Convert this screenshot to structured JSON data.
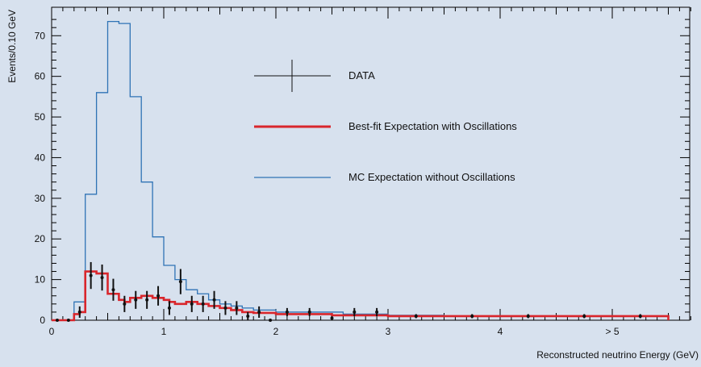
{
  "chart_data": {
    "type": "histogram",
    "xlabel": "Reconstructed neutrino Energy (GeV)",
    "ylabel": "Events/0.10 GeV",
    "xlim": [
      0,
      5.8
    ],
    "ylim": [
      0,
      77
    ],
    "grid": false,
    "legend_position": "top-center",
    "x_ticks": [
      {
        "value": 0,
        "label": "0"
      },
      {
        "value": 1,
        "label": "1"
      },
      {
        "value": 2,
        "label": "2"
      },
      {
        "value": 3,
        "label": "3"
      },
      {
        "value": 4,
        "label": "4"
      },
      {
        "value": 5,
        "label": "> 5"
      }
    ],
    "y_ticks": [
      0,
      10,
      20,
      30,
      40,
      50,
      60,
      70
    ],
    "legend": {
      "data_label": "DATA",
      "best_fit_label": "Best-fit Expectation with Oscillations",
      "mc_label": "MC Expectation without Oscillations"
    },
    "colors": {
      "data": "#111111",
      "best_fit": "#d9262c",
      "mc": "#2f73b5",
      "background": "#d7e1ee"
    },
    "mc_no_osc": {
      "name": "MC Expectation without Oscillations",
      "edges": [
        0,
        0.2,
        0.3,
        0.4,
        0.5,
        0.6,
        0.7,
        0.8,
        0.9,
        1.0,
        1.1,
        1.2,
        1.3,
        1.4,
        1.5,
        1.6,
        1.7,
        1.8,
        1.9,
        2.0,
        2.2,
        2.4,
        2.6,
        2.8,
        3.0,
        3.5,
        5.5
      ],
      "values": [
        0,
        4.5,
        31,
        56,
        73.5,
        73,
        55,
        34,
        20.5,
        13.5,
        10,
        7.5,
        6.5,
        5,
        4,
        3.5,
        3,
        2.5,
        2.5,
        2,
        2,
        2,
        1.5,
        1.5,
        1.2,
        1
      ]
    },
    "best_fit_osc": {
      "name": "Best-fit Expectation with Oscillations",
      "edges": [
        0,
        0.2,
        0.25,
        0.3,
        0.4,
        0.5,
        0.6,
        0.65,
        0.7,
        0.8,
        0.9,
        1.0,
        1.05,
        1.1,
        1.2,
        1.3,
        1.4,
        1.5,
        1.6,
        1.7,
        1.8,
        2.0,
        2.5,
        3.0,
        5.5
      ],
      "values": [
        0,
        1.5,
        2,
        12,
        11.5,
        6.5,
        5,
        4.5,
        5.5,
        6,
        5.5,
        5,
        4.5,
        4,
        4.5,
        4,
        3.5,
        3,
        2.5,
        2,
        1.8,
        1.5,
        1.2,
        1
      ]
    },
    "data_points": [
      {
        "x": 0.05,
        "y": 0,
        "err": 0
      },
      {
        "x": 0.15,
        "y": 0,
        "err": 0
      },
      {
        "x": 0.25,
        "y": 2,
        "err": 1.4
      },
      {
        "x": 0.35,
        "y": 11,
        "err": 3.3
      },
      {
        "x": 0.45,
        "y": 10.5,
        "err": 3.2
      },
      {
        "x": 0.55,
        "y": 7.5,
        "err": 2.7
      },
      {
        "x": 0.65,
        "y": 4,
        "err": 2
      },
      {
        "x": 0.75,
        "y": 5,
        "err": 2.2
      },
      {
        "x": 0.85,
        "y": 5,
        "err": 2.2
      },
      {
        "x": 0.95,
        "y": 6,
        "err": 2.4
      },
      {
        "x": 1.05,
        "y": 3,
        "err": 1.7
      },
      {
        "x": 1.15,
        "y": 9.5,
        "err": 3.1
      },
      {
        "x": 1.25,
        "y": 4,
        "err": 2
      },
      {
        "x": 1.35,
        "y": 4,
        "err": 2
      },
      {
        "x": 1.45,
        "y": 5,
        "err": 2.2
      },
      {
        "x": 1.55,
        "y": 3,
        "err": 1.7
      },
      {
        "x": 1.65,
        "y": 3,
        "err": 1.7
      },
      {
        "x": 1.75,
        "y": 1,
        "err": 1
      },
      {
        "x": 1.85,
        "y": 2,
        "err": 1.4
      },
      {
        "x": 1.95,
        "y": 0,
        "err": 0
      },
      {
        "x": 2.1,
        "y": 2,
        "err": 1
      },
      {
        "x": 2.3,
        "y": 2,
        "err": 1
      },
      {
        "x": 2.5,
        "y": 0.5,
        "err": 0.5
      },
      {
        "x": 2.7,
        "y": 2,
        "err": 1
      },
      {
        "x": 2.9,
        "y": 2,
        "err": 1
      },
      {
        "x": 3.25,
        "y": 1,
        "err": 0.5
      },
      {
        "x": 3.75,
        "y": 1,
        "err": 0.5
      },
      {
        "x": 4.25,
        "y": 1,
        "err": 0.5
      },
      {
        "x": 4.75,
        "y": 1,
        "err": 0.5
      },
      {
        "x": 5.25,
        "y": 1,
        "err": 0.5
      }
    ]
  }
}
